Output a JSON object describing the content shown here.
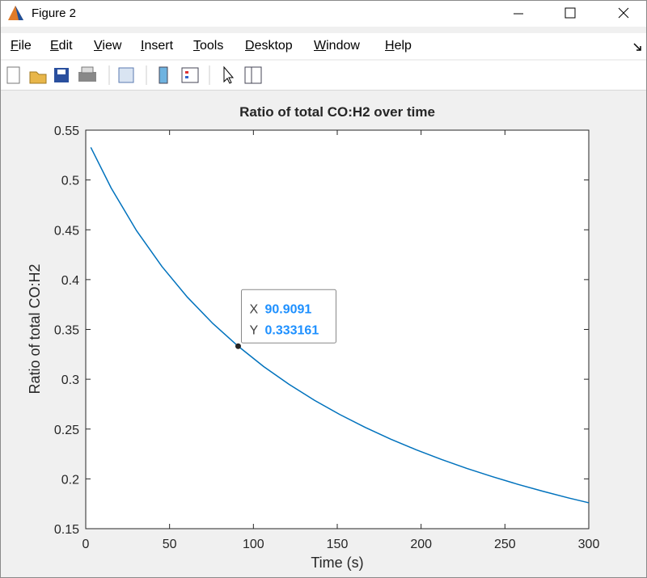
{
  "window": {
    "title": "Figure 2"
  },
  "menu": [
    "File",
    "Edit",
    "View",
    "Insert",
    "Tools",
    "Desktop",
    "Window",
    "Help"
  ],
  "chart_data": {
    "type": "line",
    "title": "Ratio of total CO:H2 over time",
    "xlabel": "Time (s)",
    "ylabel": "Ratio of total CO:H2",
    "x": [
      3.0303,
      15.1515,
      30.303,
      45.4545,
      60.6061,
      75.7576,
      90.9091,
      106.0606,
      121.2121,
      136.3636,
      151.5152,
      166.6667,
      181.8182,
      196.9697,
      212.1212,
      227.2727,
      242.4242,
      257.5758,
      272.7273,
      287.8788,
      300
    ],
    "series": [
      {
        "color": "#0072bd",
        "values": [
          0.5327,
          0.492,
          0.4491,
          0.4131,
          0.3824,
          0.356,
          0.333161,
          0.3128,
          0.2949,
          0.2789,
          0.2646,
          0.2517,
          0.2399,
          0.2293,
          0.2195,
          0.2105,
          0.2023,
          0.1946,
          0.1875,
          0.1809,
          0.176
        ]
      }
    ],
    "xlim": [
      0,
      300
    ],
    "ylim": [
      0.15,
      0.55
    ],
    "xticks": [
      0,
      50,
      100,
      150,
      200,
      250,
      300
    ],
    "yticks": [
      0.15,
      0.2,
      0.25,
      0.3,
      0.35,
      0.4,
      0.45,
      0.5,
      0.55
    ],
    "datatip": {
      "x_name": "X",
      "y_name": "Y",
      "x": 90.9091,
      "y": 0.333161
    }
  }
}
